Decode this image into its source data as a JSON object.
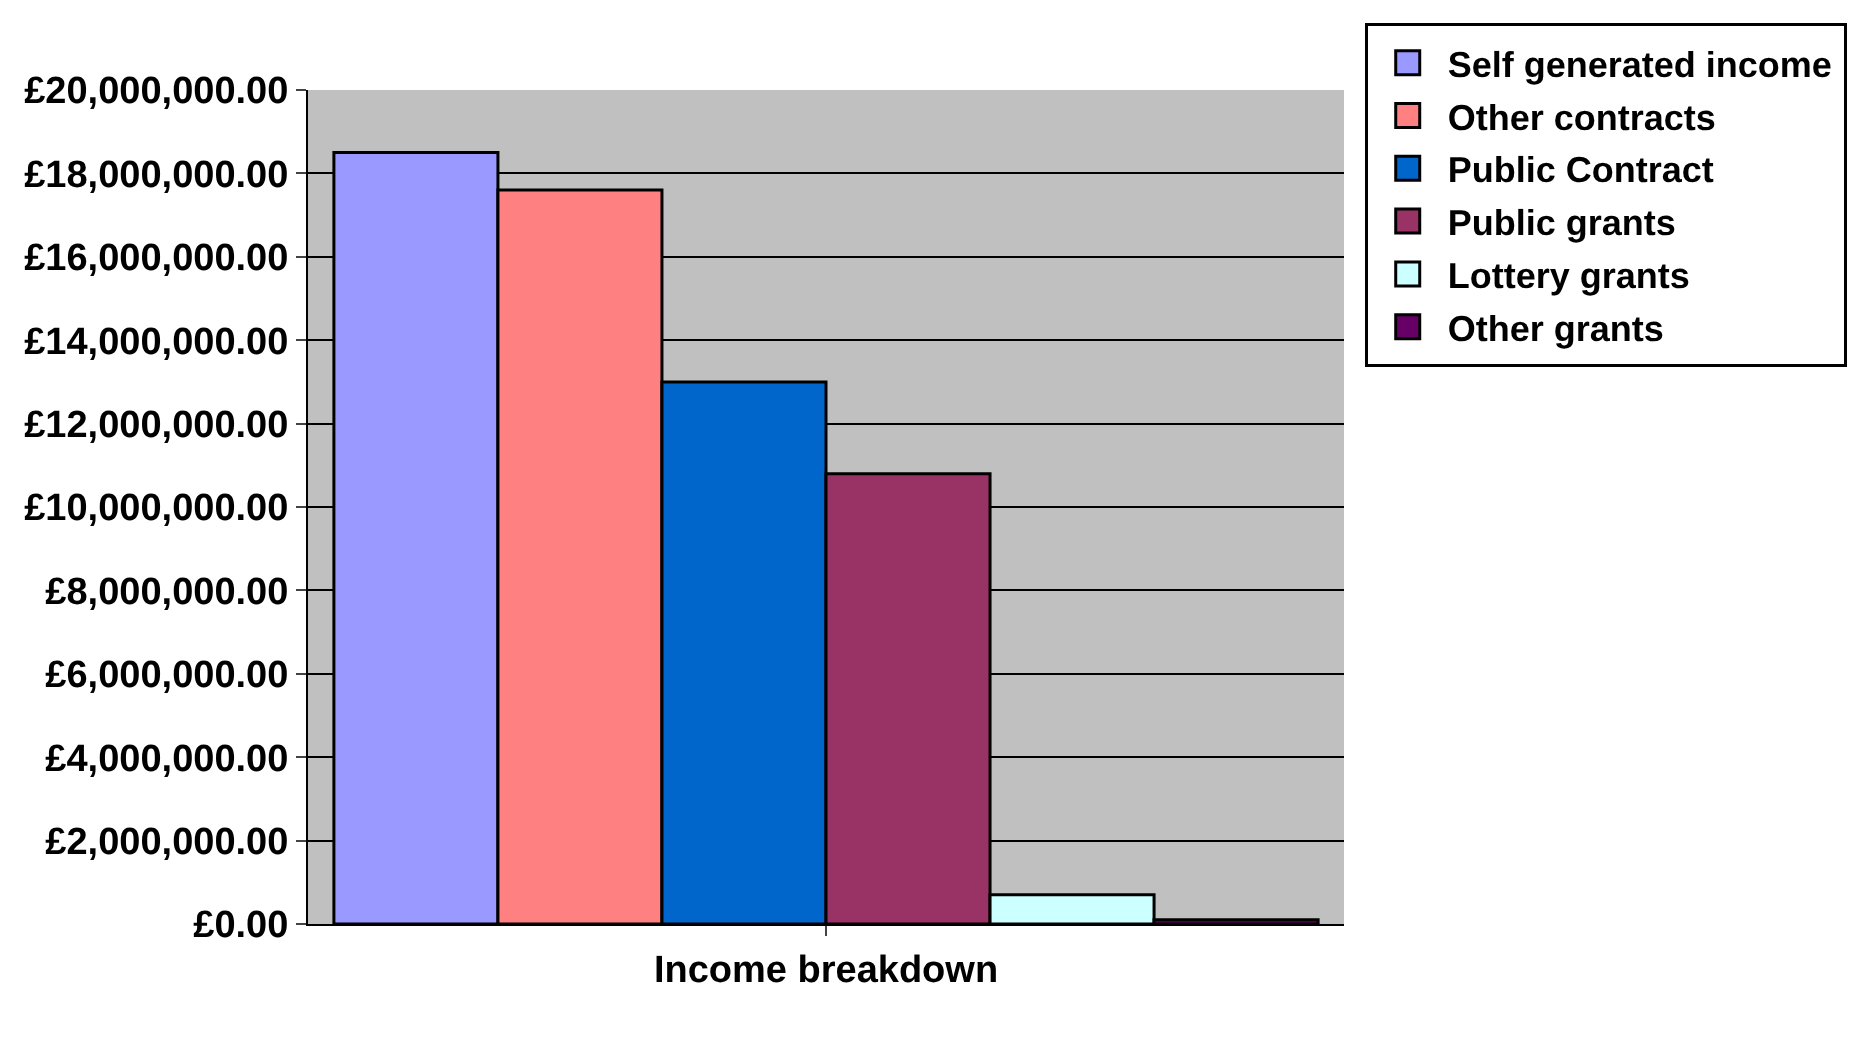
{
  "chart_data": {
    "type": "bar",
    "categories": [
      "Income breakdown"
    ],
    "series": [
      {
        "name": "Self generated income",
        "color": "#9999ff",
        "values": [
          18500000
        ]
      },
      {
        "name": "Other contracts",
        "color": "#ff8080",
        "values": [
          17600000
        ]
      },
      {
        "name": "Public Contract",
        "color": "#0066cc",
        "values": [
          13000000
        ]
      },
      {
        "name": "Public grants",
        "color": "#993366",
        "values": [
          10800000
        ]
      },
      {
        "name": "Lottery grants",
        "color": "#ccffff",
        "values": [
          700000
        ]
      },
      {
        "name": "Other grants",
        "color": "#660066",
        "values": [
          100000
        ]
      }
    ],
    "ylim": [
      0,
      20000000
    ],
    "yticks": [
      {
        "value": 0,
        "label": "£0.00"
      },
      {
        "value": 2000000,
        "label": "£2,000,000.00"
      },
      {
        "value": 4000000,
        "label": "£4,000,000.00"
      },
      {
        "value": 6000000,
        "label": "£6,000,000.00"
      },
      {
        "value": 8000000,
        "label": "£8,000,000.00"
      },
      {
        "value": 10000000,
        "label": "£10,000,000.00"
      },
      {
        "value": 12000000,
        "label": "£12,000,000.00"
      },
      {
        "value": 14000000,
        "label": "£14,000,000.00"
      },
      {
        "value": 16000000,
        "label": "£16,000,000.00"
      },
      {
        "value": 18000000,
        "label": "£18,000,000.00"
      },
      {
        "value": 20000000,
        "label": "£20,000,000.00"
      }
    ],
    "grid": "y",
    "legend": "right"
  }
}
